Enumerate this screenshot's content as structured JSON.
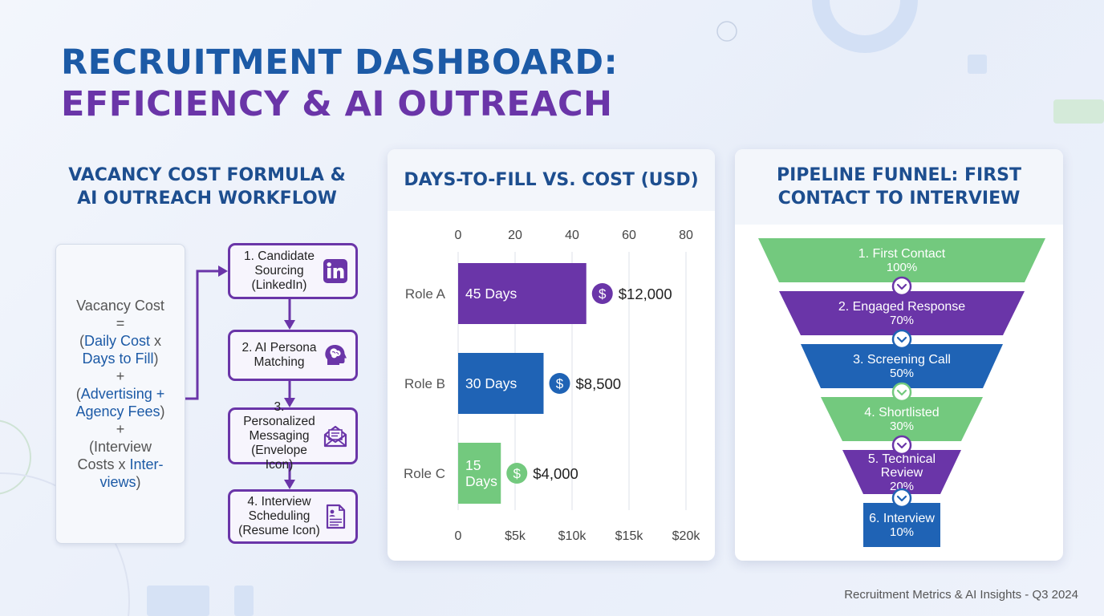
{
  "title": {
    "line1": "RECRUITMENT DASHBOARD:",
    "line2": "EFFICIENCY & AI OUTREACH"
  },
  "workflow_section": {
    "heading_line1": "VACANCY COST FORMULA &",
    "heading_line2": "AI OUTREACH WORKFLOW"
  },
  "formula": {
    "lines": [
      {
        "parts": [
          {
            "t": "Vacancy Cost",
            "hl": false
          }
        ]
      },
      {
        "parts": [
          {
            "t": "=",
            "hl": false
          }
        ]
      },
      {
        "parts": [
          {
            "t": "(",
            "hl": false
          },
          {
            "t": "Daily Cost",
            "hl": true
          },
          {
            "t": " x",
            "hl": false
          }
        ]
      },
      {
        "parts": [
          {
            "t": "Days to Fill",
            "hl": true
          },
          {
            "t": ")",
            "hl": false
          }
        ]
      },
      {
        "parts": [
          {
            "t": "+",
            "hl": false
          }
        ]
      },
      {
        "parts": [
          {
            "t": "(",
            "hl": false
          },
          {
            "t": "Advertising +",
            "hl": true
          }
        ]
      },
      {
        "parts": [
          {
            "t": "Agency Fees",
            "hl": true
          },
          {
            "t": ")",
            "hl": false
          }
        ]
      },
      {
        "parts": [
          {
            "t": "+",
            "hl": false
          }
        ]
      },
      {
        "parts": [
          {
            "t": "(Interview",
            "hl": false
          }
        ]
      },
      {
        "parts": [
          {
            "t": "Costs x ",
            "hl": false
          },
          {
            "t": "Inter-",
            "hl": true
          }
        ]
      },
      {
        "parts": [
          {
            "t": "views",
            "hl": true
          },
          {
            "t": ")",
            "hl": false
          }
        ]
      }
    ]
  },
  "workflow_steps": [
    {
      "lines": [
        "1. Candidate",
        "Sourcing",
        "(LinkedIn)"
      ],
      "icon": "linkedin-icon"
    },
    {
      "lines": [
        "2. AI Persona",
        "Matching"
      ],
      "icon": "brain-head-icon"
    },
    {
      "lines": [
        "3. Personalized",
        "Messaging",
        "(Envelope Icon)"
      ],
      "icon": "envelope-icon"
    },
    {
      "lines": [
        "4. Interview",
        "Scheduling",
        "(Resume Icon)"
      ],
      "icon": "resume-icon"
    }
  ],
  "colors": {
    "purple": "#6a35a8",
    "blue": "#1f63b5",
    "green": "#73c97e",
    "heading": "#1d4e8f"
  },
  "chart_data": [
    {
      "type": "bar",
      "orientation": "horizontal",
      "title": "DAYS-TO-FILL VS. COST (USD)",
      "categories": [
        "Role A",
        "Role B",
        "Role C"
      ],
      "series": [
        {
          "name": "Days to Fill",
          "values": [
            45,
            30,
            15
          ],
          "axis": "top",
          "xlim": [
            0,
            80
          ]
        },
        {
          "name": "Cost (USD)",
          "values": [
            12000,
            8500,
            4000
          ],
          "axis": "bottom",
          "xlim": [
            0,
            20000
          ]
        }
      ],
      "bar_labels": [
        "45 Days",
        "30 Days",
        "15 Days"
      ],
      "cost_labels": [
        "$12,000",
        "$8,500",
        "$4,000"
      ],
      "bar_colors": [
        "#6a35a8",
        "#1f63b5",
        "#73c97e"
      ],
      "top_ticks": [
        "0",
        "20",
        "40",
        "60",
        "80"
      ],
      "top_tick_values": [
        0,
        20,
        40,
        60,
        80
      ],
      "bottom_ticks": [
        "0",
        "$5k",
        "$10k",
        "$15k",
        "$20k"
      ],
      "bottom_tick_values": [
        0,
        5000,
        10000,
        15000,
        20000
      ],
      "dollar_symbol": "$",
      "grid": true
    },
    {
      "type": "funnel",
      "title": "PIPELINE FUNNEL: FIRST CONTACT TO INTERVIEW",
      "stages": [
        "1. First Contact",
        "2. Engaged Response",
        "3. Screening Call",
        "4. Shortlisted",
        "5. Technical Review",
        "6. Interview"
      ],
      "stage_lines": [
        [
          "1. First Contact"
        ],
        [
          "2. Engaged Response"
        ],
        [
          "3. Screening Call"
        ],
        [
          "4. Shortlisted"
        ],
        [
          "5. Technical",
          "Review"
        ],
        [
          "6. Interview"
        ]
      ],
      "values": [
        100,
        70,
        50,
        30,
        20,
        10
      ],
      "value_labels": [
        "100%",
        "70%",
        "50%",
        "30%",
        "20%",
        "10%"
      ],
      "stage_colors": [
        "#73c97e",
        "#6a35a8",
        "#1f63b5",
        "#73c97e",
        "#6a35a8",
        "#1f63b5"
      ]
    }
  ],
  "chart_headers": {
    "bar": "DAYS-TO-FILL VS. COST (USD)",
    "funnel_line1": "PIPELINE FUNNEL: FIRST",
    "funnel_line2": "CONTACT TO INTERVIEW"
  },
  "footer": "Recruitment Metrics & AI Insights - Q3 2024"
}
